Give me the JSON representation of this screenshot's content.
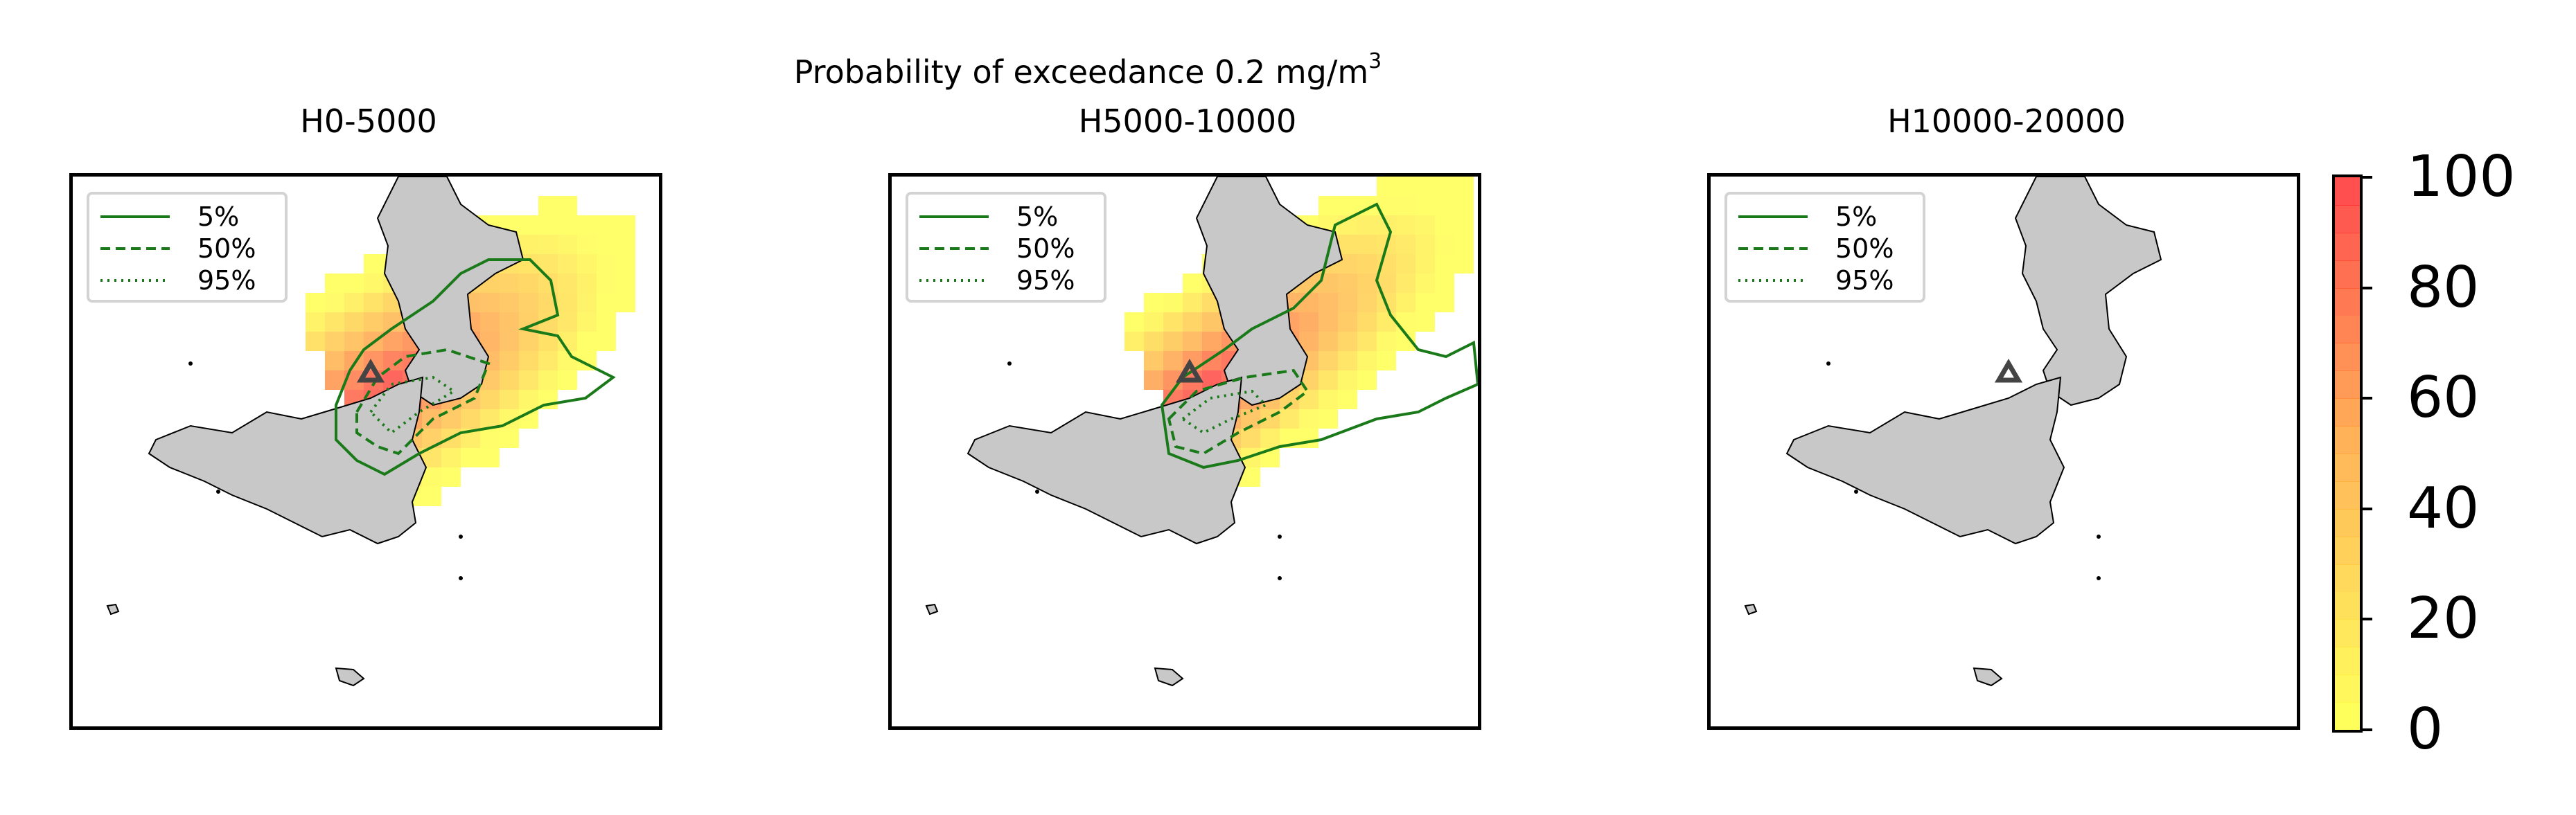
{
  "figure": {
    "suptitle_main": "Probability of exceedance 0.2 mg/m",
    "suptitle_sup": "3"
  },
  "panels": [
    {
      "title": "H0-5000"
    },
    {
      "title": "H5000-10000"
    },
    {
      "title": "H10000-20000"
    }
  ],
  "legend": {
    "entries": [
      {
        "label": "5%",
        "style": "solid"
      },
      {
        "label": "50%",
        "style": "dashed"
      },
      {
        "label": "95%",
        "style": "dotted"
      }
    ],
    "line_color": "#1a7a1a"
  },
  "colorbar": {
    "ticks": [
      "0",
      "20",
      "40",
      "60",
      "80",
      "100"
    ],
    "min": 0,
    "max": 100,
    "low_color": "#ffff40",
    "high_color": "#ff3030"
  },
  "colors": {
    "land": "#c8c8c8",
    "coast": "#000000",
    "vent_marker": "#444444",
    "contour": "#1a7a1a"
  }
}
